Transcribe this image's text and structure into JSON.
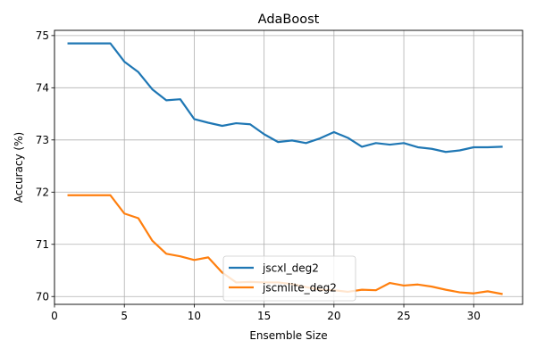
{
  "chart_data": {
    "type": "line",
    "title": "AdaBoost",
    "xlabel": "Ensemble Size",
    "ylabel": "Accuracy (%)",
    "xlim": [
      0,
      33.5
    ],
    "ylim": [
      69.85,
      75.1
    ],
    "xticks": [
      0,
      5,
      10,
      15,
      20,
      25,
      30
    ],
    "yticks": [
      70,
      71,
      72,
      73,
      74,
      75
    ],
    "grid": true,
    "legend_position": "lower-center",
    "x": [
      1,
      2,
      3,
      4,
      5,
      6,
      7,
      8,
      9,
      10,
      11,
      12,
      13,
      14,
      15,
      16,
      17,
      18,
      19,
      20,
      21,
      22,
      23,
      24,
      25,
      26,
      27,
      28,
      29,
      30,
      31,
      32
    ],
    "series": [
      {
        "name": "jscxl_deg2",
        "color": "#1f77b4",
        "values": [
          74.85,
          74.85,
          74.85,
          74.85,
          74.5,
          74.3,
          73.97,
          73.76,
          73.78,
          73.4,
          73.33,
          73.27,
          73.32,
          73.3,
          73.11,
          72.96,
          72.99,
          72.94,
          73.03,
          73.15,
          73.04,
          72.87,
          72.94,
          72.91,
          72.94,
          72.86,
          72.83,
          72.77,
          72.8,
          72.86,
          72.86,
          72.87
        ]
      },
      {
        "name": "jscmlite_deg2",
        "color": "#ff7f0e",
        "values": [
          71.94,
          71.94,
          71.94,
          71.94,
          71.59,
          71.5,
          71.07,
          70.82,
          70.77,
          70.7,
          70.75,
          70.46,
          70.27,
          70.28,
          70.27,
          70.27,
          70.24,
          70.18,
          70.13,
          70.12,
          70.09,
          70.13,
          70.12,
          70.26,
          70.21,
          70.23,
          70.19,
          70.13,
          70.08,
          70.06,
          70.1,
          70.05
        ]
      }
    ]
  }
}
